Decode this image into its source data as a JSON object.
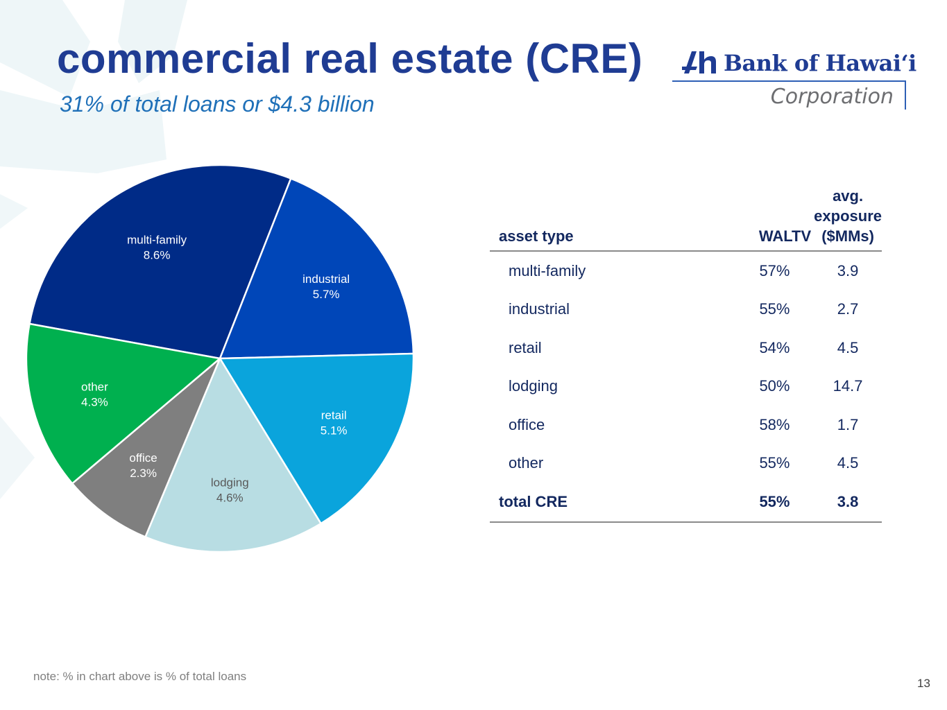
{
  "title": "commercial real estate (CRE)",
  "subtitle": "31% of total loans or $4.3 billion",
  "logo": {
    "name": "Bank of Hawaiʻi",
    "sub": "Corporation"
  },
  "chart_data": {
    "type": "pie",
    "title": "",
    "unit": "% of total loans",
    "slices": [
      {
        "label": "multi-family",
        "display": "8.6%",
        "value": 8.6,
        "color": "#002b87",
        "text_color": "#ffffff"
      },
      {
        "label": "industrial",
        "display": "5.7%",
        "value": 5.7,
        "color": "#0046b8",
        "text_color": "#ffffff"
      },
      {
        "label": "retail",
        "display": "5.1%",
        "value": 5.1,
        "color": "#0aa4dc",
        "text_color": "#ffffff"
      },
      {
        "label": "lodging",
        "display": "4.6%",
        "value": 4.6,
        "color": "#b8dde3",
        "text_color": "#595959"
      },
      {
        "label": "office",
        "display": "2.3%",
        "value": 2.3,
        "color": "#7f7f7f",
        "text_color": "#ffffff"
      },
      {
        "label": "other",
        "display": "4.3%",
        "value": 4.3,
        "color": "#00b04f",
        "text_color": "#ffffff"
      }
    ]
  },
  "table": {
    "headers": {
      "asset_type": "asset type",
      "waltv": "WALTV",
      "exposure_1": "avg.",
      "exposure_2": "exposure",
      "exposure_3": "($MMs)"
    },
    "rows": [
      {
        "asset": "multi-family",
        "waltv": "57%",
        "exposure": "3.9"
      },
      {
        "asset": "industrial",
        "waltv": "55%",
        "exposure": "2.7"
      },
      {
        "asset": "retail",
        "waltv": "54%",
        "exposure": "4.5"
      },
      {
        "asset": "lodging",
        "waltv": "50%",
        "exposure": "14.7"
      },
      {
        "asset": "office",
        "waltv": "58%",
        "exposure": "1.7"
      },
      {
        "asset": "other",
        "waltv": "55%",
        "exposure": "4.5"
      }
    ],
    "total": {
      "asset": "total CRE",
      "waltv": "55%",
      "exposure": "3.8"
    }
  },
  "note": "note: % in chart above is % of total loans",
  "page_number": "13",
  "colors": {
    "title": "#1f3c93",
    "subtitle": "#1f70b8",
    "table_text": "#13285f"
  }
}
